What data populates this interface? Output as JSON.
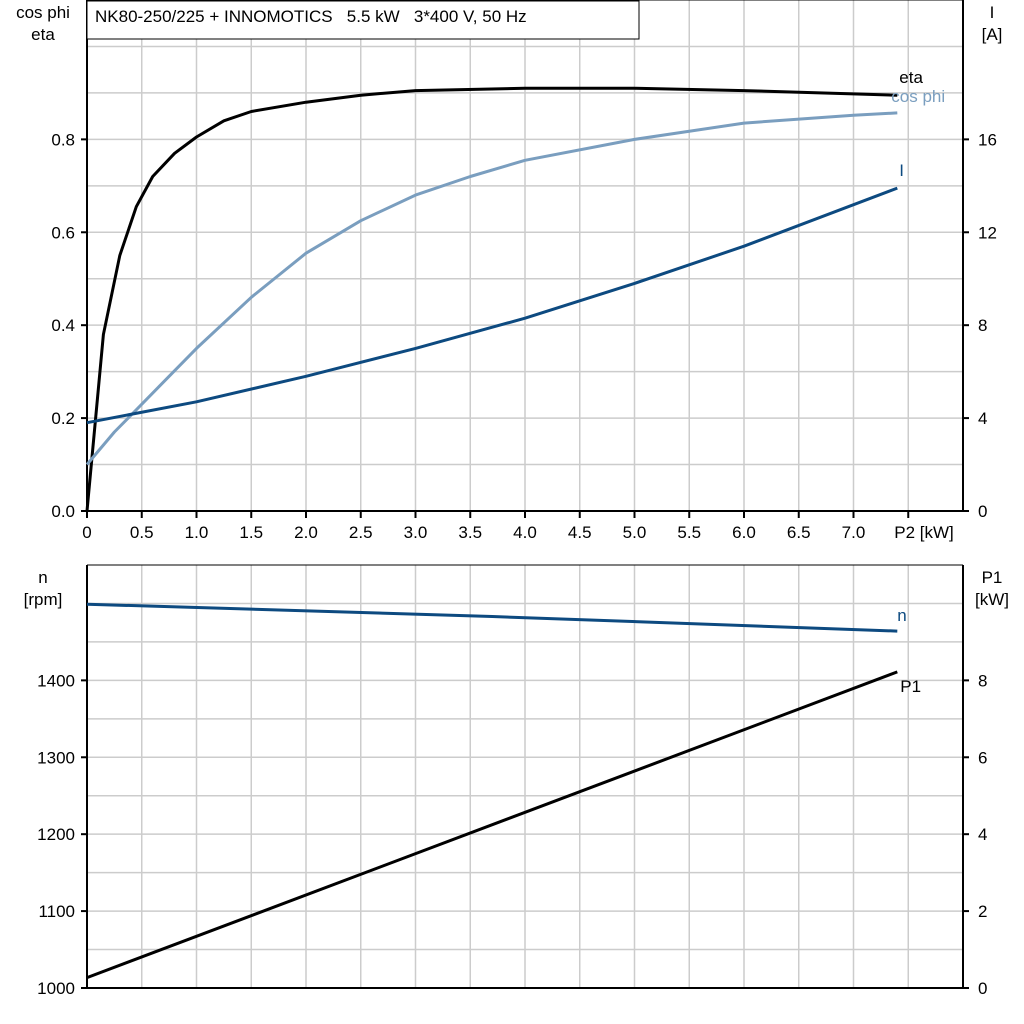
{
  "colors": {
    "eta": "#000000",
    "cos_phi": "#7a9ebf",
    "I": "#0d4a80",
    "n": "#0d4a80",
    "P1": "#000000",
    "grid": "#cccccc"
  },
  "chart_data": [
    {
      "type": "line",
      "title": "NK80-250/225 + INNOMOTICS   5.5 kW   3*400 V, 50 Hz",
      "xlabel": "P2 [kW]",
      "xlim": [
        0,
        8
      ],
      "xticks": [
        "0",
        "0.5",
        "1.0",
        "1.5",
        "2.0",
        "2.5",
        "3.0",
        "3.5",
        "4.0",
        "4.5",
        "5.0",
        "5.5",
        "6.0",
        "6.5",
        "7.0"
      ],
      "ylabel_left": [
        "cos phi",
        "eta"
      ],
      "ylim_left": [
        0,
        1.1
      ],
      "yticks_left": [
        "0.0",
        "0.2",
        "0.4",
        "0.6",
        "0.8"
      ],
      "ylabel_right": [
        "I",
        "[A]"
      ],
      "ylim_right": [
        0,
        22
      ],
      "yticks_right": [
        "0",
        "4",
        "8",
        "12",
        "16"
      ],
      "grid": true,
      "series": [
        {
          "name": "eta",
          "axis": "left",
          "x": [
            0,
            0.15,
            0.3,
            0.45,
            0.6,
            0.8,
            1.0,
            1.25,
            1.5,
            2.0,
            2.5,
            3.0,
            4.0,
            5.0,
            6.0,
            7.4
          ],
          "y": [
            0,
            0.38,
            0.55,
            0.655,
            0.72,
            0.77,
            0.805,
            0.84,
            0.86,
            0.88,
            0.895,
            0.905,
            0.91,
            0.91,
            0.905,
            0.895
          ]
        },
        {
          "name": "cos phi",
          "axis": "left",
          "x": [
            0,
            0.25,
            0.5,
            0.75,
            1.0,
            1.5,
            2.0,
            2.5,
            3.0,
            3.5,
            4.0,
            5.0,
            6.0,
            7.0,
            7.4
          ],
          "y": [
            0.1,
            0.17,
            0.23,
            0.29,
            0.35,
            0.46,
            0.555,
            0.625,
            0.68,
            0.72,
            0.755,
            0.8,
            0.835,
            0.852,
            0.857
          ]
        },
        {
          "name": "I",
          "axis": "right",
          "x": [
            0,
            1.0,
            2.0,
            3.0,
            4.0,
            5.0,
            6.0,
            7.4
          ],
          "y": [
            3.8,
            4.7,
            5.8,
            7.0,
            8.3,
            9.8,
            11.4,
            13.9
          ]
        }
      ]
    },
    {
      "type": "line",
      "xlim": [
        0,
        8
      ],
      "ylabel_left": [
        "n",
        "[rpm]"
      ],
      "ylim_left": [
        1000,
        1550
      ],
      "yticks_left": [
        "1000",
        "1100",
        "1200",
        "1300",
        "1400"
      ],
      "ylabel_right": [
        "P1",
        "[kW]"
      ],
      "ylim_right": [
        0,
        11
      ],
      "yticks_right": [
        "0",
        "2",
        "4",
        "6",
        "8"
      ],
      "grid": true,
      "series": [
        {
          "name": "n",
          "axis": "left",
          "x": [
            0,
            3.7,
            7.4
          ],
          "y": [
            1499,
            1483,
            1464
          ]
        },
        {
          "name": "P1",
          "axis": "right",
          "x": [
            0,
            7.4
          ],
          "y": [
            0.27,
            8.22
          ]
        }
      ]
    }
  ]
}
